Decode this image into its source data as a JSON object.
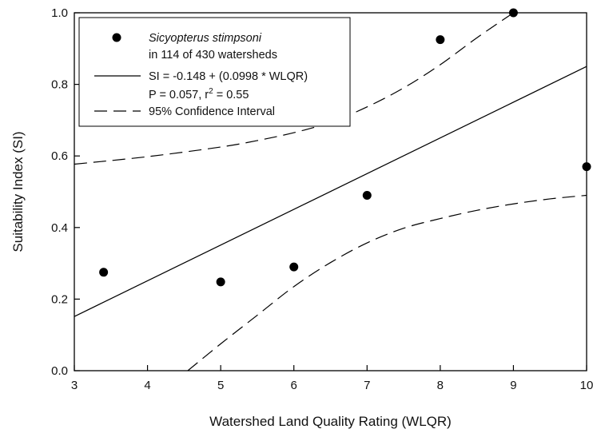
{
  "chart_data": {
    "type": "scatter",
    "title": "",
    "xlabel": "Watershed Land Quality Rating (WLQR)",
    "ylabel": "Suitability Index (SI)",
    "xlim": [
      3,
      10
    ],
    "ylim": [
      0,
      1.0
    ],
    "xticks": [
      3,
      4,
      5,
      6,
      7,
      8,
      9,
      10
    ],
    "yticks": [
      "0.0",
      "0.2",
      "0.4",
      "0.6",
      "0.8",
      "1.0"
    ],
    "grid": false,
    "legend_position": "top-left",
    "series": [
      {
        "name": "Sicyopterus stimpsoni",
        "kind": "points",
        "points": [
          {
            "x": 3.4,
            "y": 0.275
          },
          {
            "x": 5.0,
            "y": 0.248
          },
          {
            "x": 6.0,
            "y": 0.29
          },
          {
            "x": 7.0,
            "y": 0.49
          },
          {
            "x": 8.0,
            "y": 0.925
          },
          {
            "x": 9.0,
            "y": 1.0
          },
          {
            "x": 10.0,
            "y": 0.57
          }
        ]
      },
      {
        "name": "SI = -0.148 + (0.0998 * WLQR)",
        "kind": "regression",
        "intercept": -0.148,
        "slope": 0.0998
      },
      {
        "name": "95% Confidence Interval",
        "kind": "ci_upper",
        "points": [
          {
            "x": 3.0,
            "y": 0.577
          },
          {
            "x": 4.0,
            "y": 0.598
          },
          {
            "x": 5.0,
            "y": 0.625
          },
          {
            "x": 5.5,
            "y": 0.643
          },
          {
            "x": 6.0,
            "y": 0.665
          },
          {
            "x": 6.5,
            "y": 0.694
          },
          {
            "x": 7.0,
            "y": 0.737
          },
          {
            "x": 7.5,
            "y": 0.79
          },
          {
            "x": 8.0,
            "y": 0.855
          },
          {
            "x": 8.5,
            "y": 0.93
          },
          {
            "x": 9.0,
            "y": 1.0
          }
        ]
      },
      {
        "name": "95% Confidence Interval",
        "kind": "ci_lower",
        "points": [
          {
            "x": 4.55,
            "y": 0.0
          },
          {
            "x": 5.0,
            "y": 0.075
          },
          {
            "x": 5.5,
            "y": 0.155
          },
          {
            "x": 6.0,
            "y": 0.235
          },
          {
            "x": 6.5,
            "y": 0.302
          },
          {
            "x": 7.0,
            "y": 0.357
          },
          {
            "x": 7.5,
            "y": 0.398
          },
          {
            "x": 8.0,
            "y": 0.425
          },
          {
            "x": 8.5,
            "y": 0.448
          },
          {
            "x": 9.0,
            "y": 0.466
          },
          {
            "x": 9.5,
            "y": 0.48
          },
          {
            "x": 10.0,
            "y": 0.49
          }
        ]
      }
    ],
    "legend": {
      "species": "Sicyopterus stimpsoni",
      "species_detail": "in 114 of 430 watersheds",
      "equation": "SI = -0.148 + (0.0998 * WLQR)",
      "stats_prefix": "P = 0.057, r",
      "stats_sup": "2",
      "stats_suffix": " = 0.55",
      "ci_label": "95% Confidence Interval"
    }
  }
}
